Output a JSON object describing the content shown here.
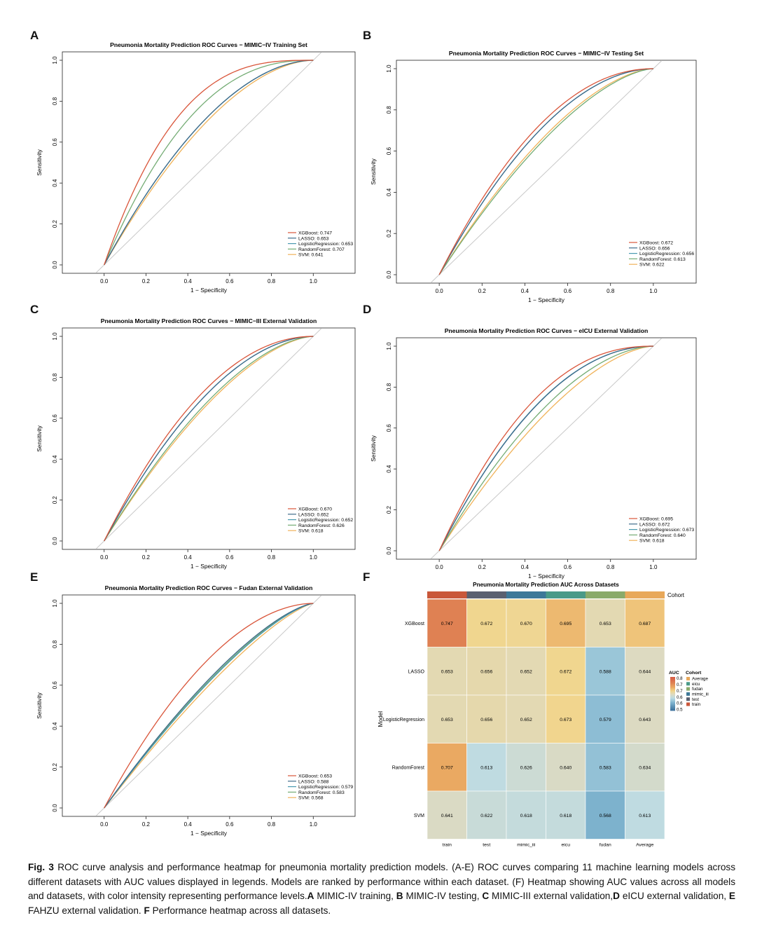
{
  "figure": {
    "panel_labels": [
      "A",
      "B",
      "C",
      "D",
      "E",
      "F"
    ],
    "caption": {
      "fig_label": "Fig. 3",
      "text": "ROC curve analysis and performance heatmap for pneumonia mortality prediction models. (A-E) ROC curves comparing 11 machine learning models across different datasets with AUC values displayed in legends. Models are ranked by performance within each dataset. (F) Heatmap showing AUC values across all models and datasets, with color intensity representing performance levels.",
      "parts": [
        {
          "letter": "A",
          "text": "MIMIC-IV training,"
        },
        {
          "letter": "B",
          "text": "MIMIC-IV testing,"
        },
        {
          "letter": "C",
          "text": "MIMIC-III external validation,"
        },
        {
          "letter": "D",
          "text": "eICU external validation,"
        },
        {
          "letter": "E",
          "text": "FAHZU external validation."
        },
        {
          "letter": "F",
          "text": "Performance heatmap across all datasets."
        }
      ]
    }
  },
  "colors": {
    "XGBoost": "#d9553a",
    "LASSO": "#3d6a8a",
    "LogisticRegression": "#4a9ab0",
    "RandomForest": "#74ac74",
    "SVM": "#f0b35a",
    "diagonal": "#c8c8c8"
  },
  "chart_data": [
    {
      "type": "line",
      "panel": "A",
      "title": "Pneumonia Mortality Prediction ROC Curves − MIMIC−IV Training Set",
      "xlabel": "1 − Specificity",
      "ylabel": "Sensitivity",
      "xlim": [
        -0.2,
        1.2
      ],
      "ylim": [
        0,
        1
      ],
      "ticks": [
        "0.0",
        "0.2",
        "0.4",
        "0.6",
        "0.8",
        "1.0"
      ],
      "series": [
        {
          "name": "XGBoost",
          "auc": 0.747,
          "label": "XGBoost: 0.747"
        },
        {
          "name": "LASSO",
          "auc": 0.653,
          "label": "LASSO: 0.653"
        },
        {
          "name": "LogisticRegression",
          "auc": 0.653,
          "label": "LogisticRegression: 0.653"
        },
        {
          "name": "RandomForest",
          "auc": 0.707,
          "label": "RandomForest: 0.707"
        },
        {
          "name": "SVM",
          "auc": 0.641,
          "label": "SVM: 0.641"
        }
      ]
    },
    {
      "type": "line",
      "panel": "B",
      "title": "Pneumonia Mortality Prediction ROC Curves − MIMIC−IV Testing Set",
      "xlabel": "1 − Specificity",
      "ylabel": "Sensitivity",
      "xlim": [
        -0.2,
        1.2
      ],
      "ylim": [
        0,
        1
      ],
      "ticks": [
        "0.0",
        "0.2",
        "0.4",
        "0.6",
        "0.8",
        "1.0"
      ],
      "series": [
        {
          "name": "XGBoost",
          "auc": 0.672,
          "label": "XGBoost: 0.672"
        },
        {
          "name": "LASSO",
          "auc": 0.656,
          "label": "LASSO: 0.656"
        },
        {
          "name": "LogisticRegression",
          "auc": 0.656,
          "label": "LogisticRegression: 0.656"
        },
        {
          "name": "RandomForest",
          "auc": 0.613,
          "label": "RandomForest: 0.613"
        },
        {
          "name": "SVM",
          "auc": 0.622,
          "label": "SVM: 0.622"
        }
      ]
    },
    {
      "type": "line",
      "panel": "C",
      "title": "Pneumonia Mortality Prediction ROC Curves − MIMIC−III External Validation",
      "xlabel": "1 − Specificity",
      "ylabel": "Sensitivity",
      "xlim": [
        -0.2,
        1.2
      ],
      "ylim": [
        0,
        1
      ],
      "ticks": [
        "0.0",
        "0.2",
        "0.4",
        "0.6",
        "0.8",
        "1.0"
      ],
      "series": [
        {
          "name": "XGBoost",
          "auc": 0.67,
          "label": "XGBoost: 0.670"
        },
        {
          "name": "LASSO",
          "auc": 0.652,
          "label": "LASSO: 0.652"
        },
        {
          "name": "LogisticRegression",
          "auc": 0.652,
          "label": "LogisticRegression: 0.652"
        },
        {
          "name": "RandomForest",
          "auc": 0.626,
          "label": "RandomForest: 0.626"
        },
        {
          "name": "SVM",
          "auc": 0.618,
          "label": "SVM: 0.618"
        }
      ]
    },
    {
      "type": "line",
      "panel": "D",
      "title": "Pneumonia Mortality Prediction ROC Curves − eICU External Validation",
      "xlabel": "1 − Specificity",
      "ylabel": "Sensitivity",
      "xlim": [
        -0.2,
        1.2
      ],
      "ylim": [
        0,
        1
      ],
      "ticks": [
        "0.0",
        "0.2",
        "0.4",
        "0.6",
        "0.8",
        "1.0"
      ],
      "series": [
        {
          "name": "XGBoost",
          "auc": 0.695,
          "label": "XGBoost: 0.695"
        },
        {
          "name": "LASSO",
          "auc": 0.672,
          "label": "LASSO: 0.672"
        },
        {
          "name": "LogisticRegression",
          "auc": 0.673,
          "label": "LogisticRegression: 0.673"
        },
        {
          "name": "RandomForest",
          "auc": 0.64,
          "label": "RandomForest: 0.640"
        },
        {
          "name": "SVM",
          "auc": 0.618,
          "label": "SVM: 0.618"
        }
      ]
    },
    {
      "type": "line",
      "panel": "E",
      "title": "Pneumonia Mortality Prediction ROC Curves − Fudan External Validation",
      "xlabel": "1 − Specificity",
      "ylabel": "Sensitivity",
      "xlim": [
        -0.2,
        1.2
      ],
      "ylim": [
        0,
        1
      ],
      "ticks": [
        "0.0",
        "0.2",
        "0.4",
        "0.6",
        "0.8",
        "1.0"
      ],
      "series": [
        {
          "name": "XGBoost",
          "auc": 0.653,
          "label": "XGBoost: 0.653"
        },
        {
          "name": "LASSO",
          "auc": 0.588,
          "label": "LASSO: 0.588"
        },
        {
          "name": "LogisticRegression",
          "auc": 0.579,
          "label": "LogisticRegression: 0.579"
        },
        {
          "name": "RandomForest",
          "auc": 0.583,
          "label": "RandomForest: 0.583"
        },
        {
          "name": "SVM",
          "auc": 0.568,
          "label": "SVM: 0.568"
        }
      ]
    },
    {
      "type": "heatmap",
      "panel": "F",
      "title": "Pneumonia Mortality Prediction AUC Across Datasets",
      "ylabel": "Model",
      "annotation_label": "Cohort",
      "columns": [
        "train",
        "test",
        "mimic_iii",
        "eicu",
        "fudan",
        "Average"
      ],
      "column_colors": [
        "#c9573a",
        "#5a6070",
        "#3d7898",
        "#4a9a88",
        "#8aaa6a",
        "#e8a85a"
      ],
      "rows": [
        "XGBoost",
        "LASSO",
        "LogisticRegression",
        "RandomForest",
        "SVM"
      ],
      "values": [
        [
          "0.747",
          "0.672",
          "0.670",
          "0.695",
          "0.653",
          "0.687"
        ],
        [
          "0.653",
          "0.656",
          "0.652",
          "0.672",
          "0.588",
          "0.644"
        ],
        [
          "0.653",
          "0.656",
          "0.652",
          "0.673",
          "0.579",
          "0.643"
        ],
        [
          "0.707",
          "0.613",
          "0.626",
          "0.640",
          "0.583",
          "0.634"
        ],
        [
          "0.641",
          "0.622",
          "0.618",
          "0.618",
          "0.568",
          "0.613"
        ]
      ],
      "color_range": [
        0.5,
        0.8
      ],
      "legend_auc": {
        "title": "AUC",
        "ticks": [
          "0.8",
          "0.7",
          "0.7",
          "0.6",
          "0.6",
          "0.5"
        ]
      },
      "legend_cohort": {
        "title": "Cohort",
        "items": [
          "Average",
          "eicu",
          "fudan",
          "mimic_iii",
          "test",
          "train"
        ],
        "colors": [
          "#e8a85a",
          "#4a9a88",
          "#8aaa6a",
          "#3d7898",
          "#5a6070",
          "#c9573a"
        ]
      }
    }
  ]
}
